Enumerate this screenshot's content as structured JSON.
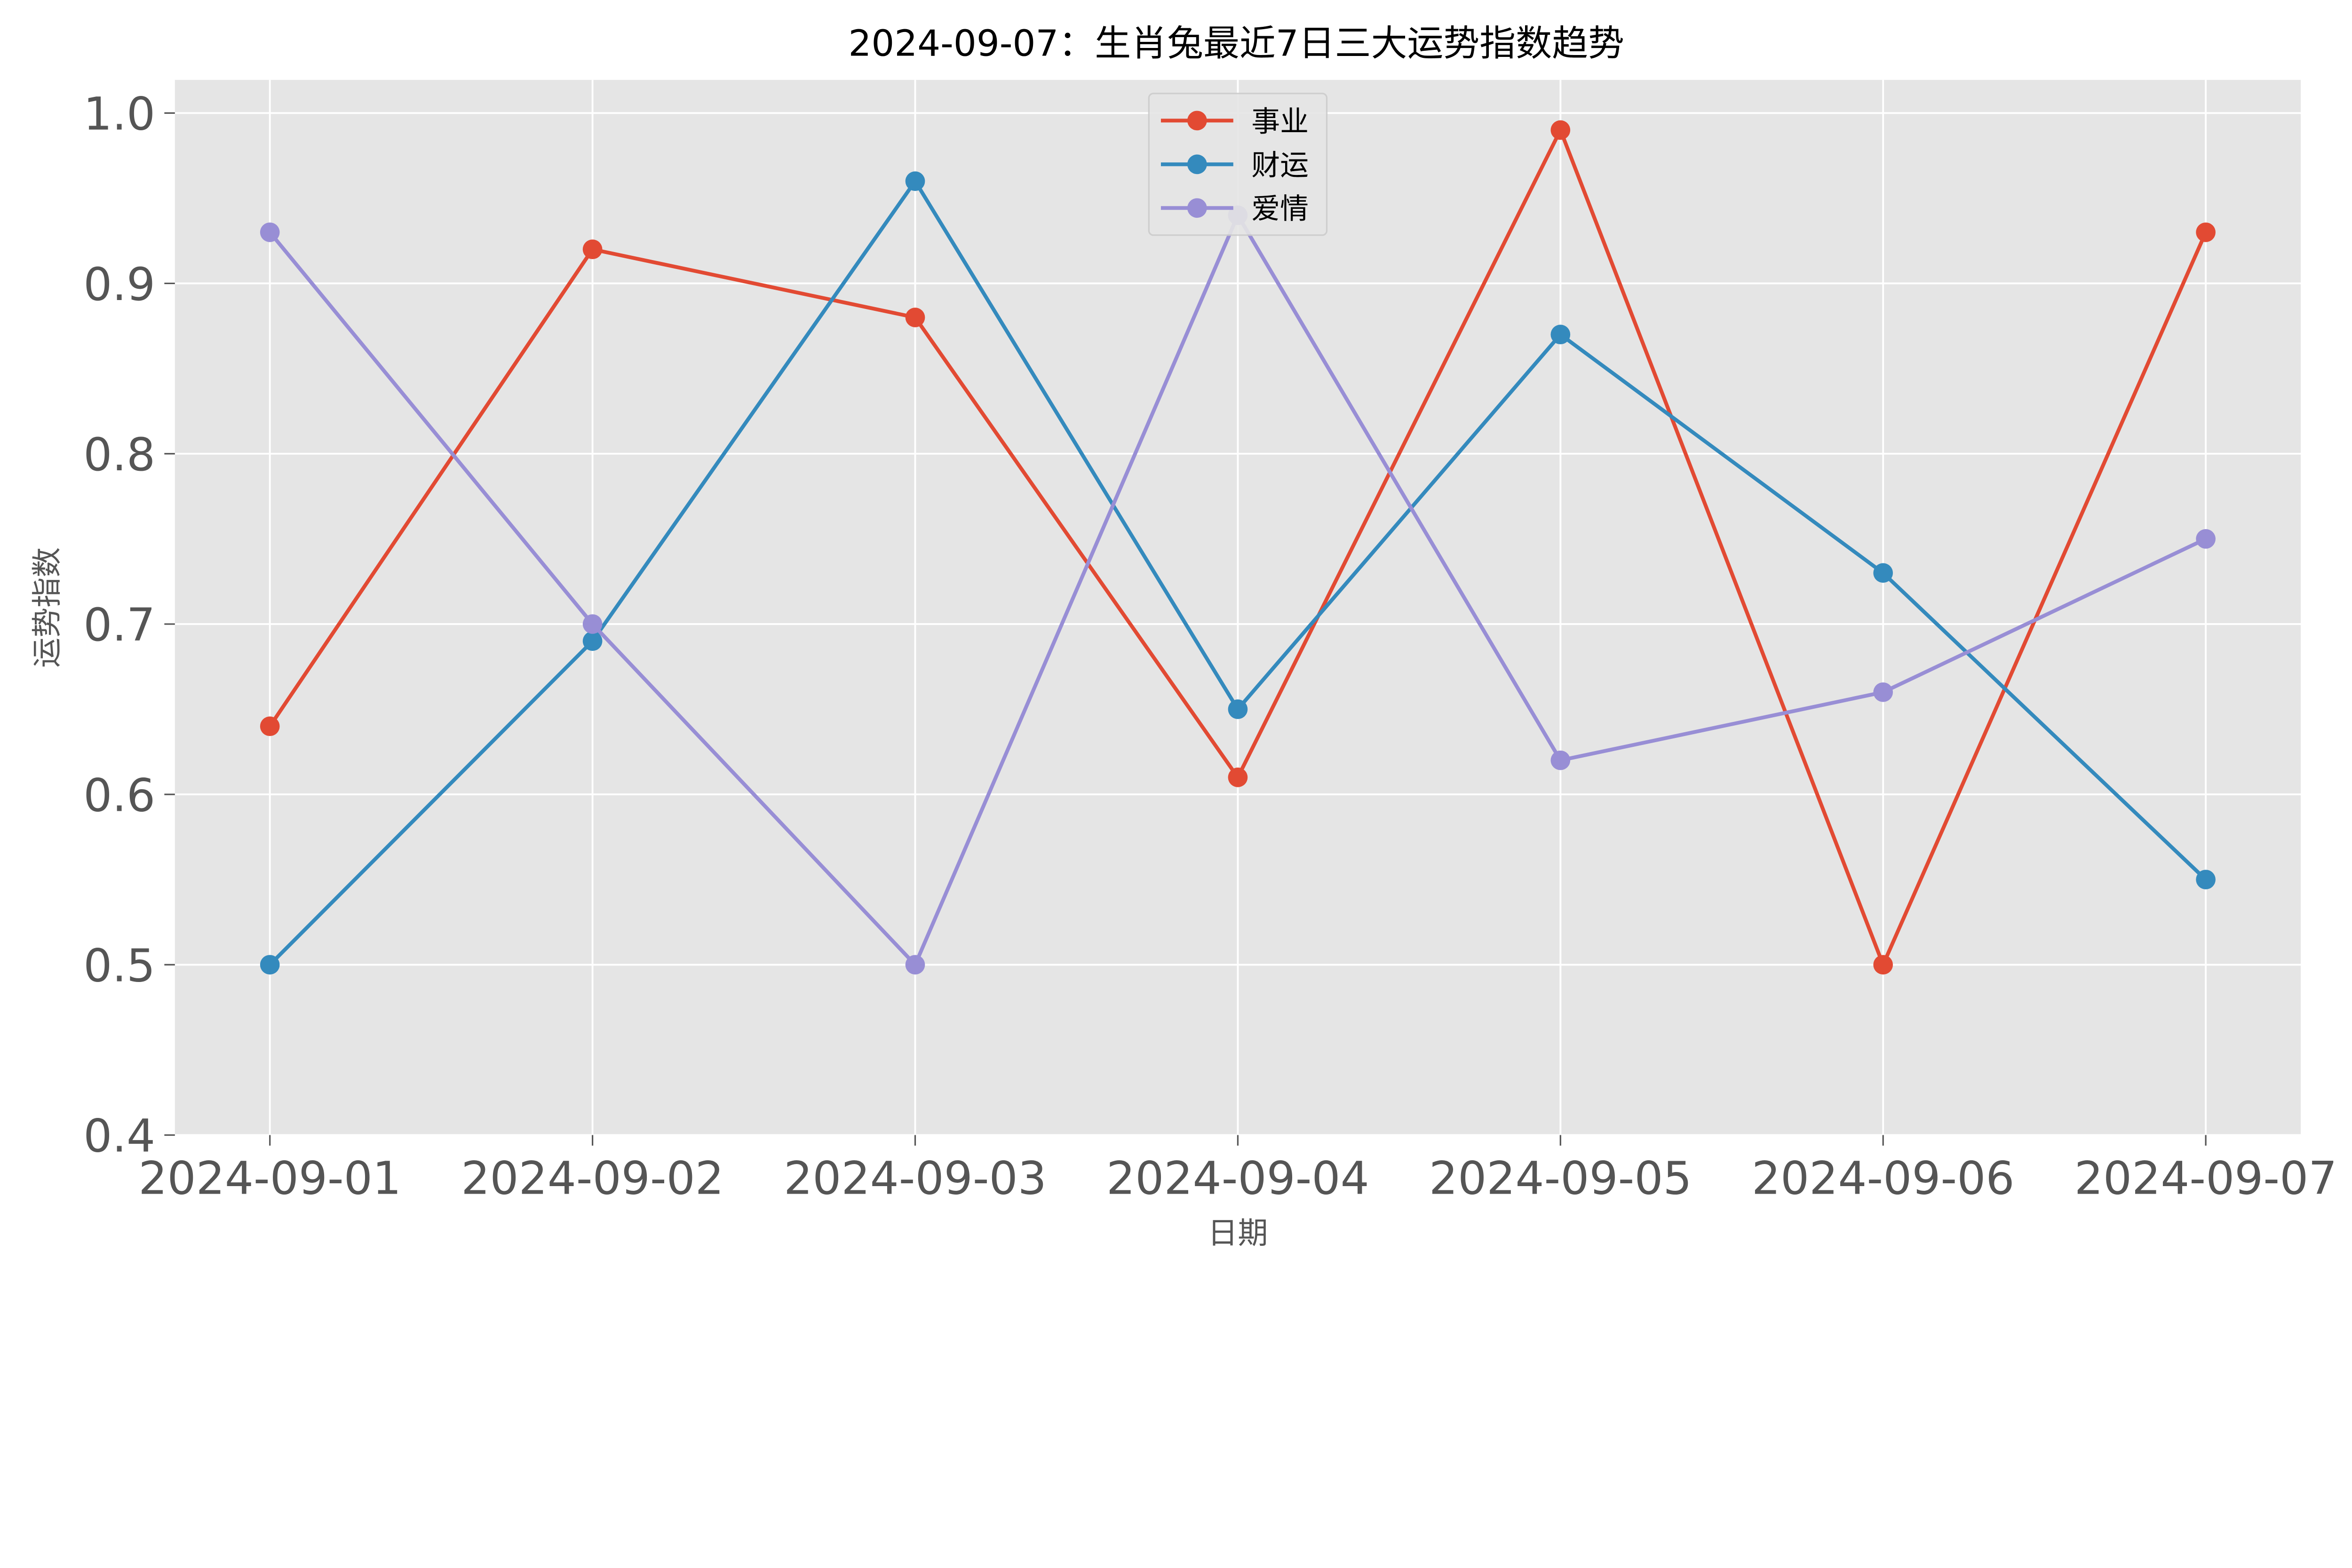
{
  "chart_data": {
    "type": "line",
    "title": "2024-09-07：生肖兔最近7日三大运势指数趋势",
    "xlabel": "日期",
    "ylabel": "运势指数",
    "categories": [
      "2024-09-01",
      "2024-09-02",
      "2024-09-03",
      "2024-09-04",
      "2024-09-05",
      "2024-09-06",
      "2024-09-07"
    ],
    "ylim": [
      0.4,
      1.02
    ],
    "yticks": [
      "0.4",
      "0.5",
      "0.6",
      "0.7",
      "0.8",
      "0.9",
      "1.0"
    ],
    "grid": true,
    "legend_placement": "top-center",
    "background": "#E5E5E5",
    "series": [
      {
        "name": "事业",
        "color": "#E24A33",
        "values": [
          0.64,
          0.92,
          0.88,
          0.61,
          0.99,
          0.5,
          0.93
        ]
      },
      {
        "name": "财运",
        "color": "#348ABD",
        "values": [
          0.5,
          0.69,
          0.96,
          0.65,
          0.87,
          0.73,
          0.55
        ]
      },
      {
        "name": "爱情",
        "color": "#988ED5",
        "values": [
          0.93,
          0.7,
          0.5,
          0.94,
          0.62,
          0.66,
          0.75
        ]
      }
    ]
  }
}
